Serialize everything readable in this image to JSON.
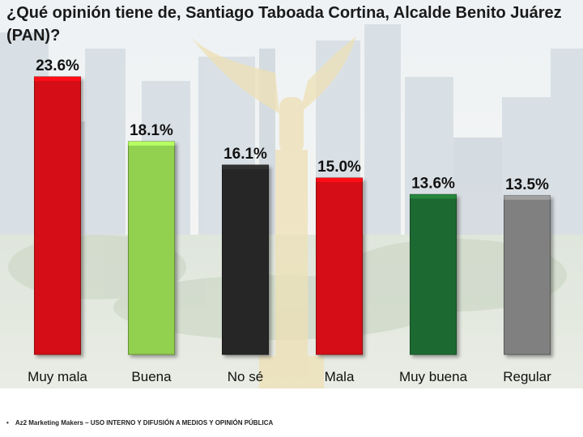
{
  "chart_data": {
    "type": "bar",
    "title": "¿Qué opinión tiene de, Santiago Taboada Cortina, Alcalde Benito Juárez (PAN)?",
    "categories": [
      "Muy mala",
      "Buena",
      "No sé",
      "Mala",
      "Muy buena",
      "Regular"
    ],
    "values": [
      23.6,
      18.1,
      16.1,
      15.0,
      13.6,
      13.5
    ],
    "data_labels": [
      "23.6%",
      "18.1%",
      "16.1%",
      "15.0%",
      "13.6%",
      "13.5%"
    ],
    "colors": [
      "#d40d12",
      "#92d050",
      "#262626",
      "#d40d12",
      "#1e6b30",
      "#808080"
    ],
    "xlabel": "",
    "ylabel": "",
    "ylim": [
      0,
      23.6
    ],
    "grid": false,
    "legend": "none"
  },
  "footer": {
    "bullet": "•",
    "text": "Az2 Marketing Makers – USO INTERNO Y DIFUSIÓN A MEDIOS Y OPINIÓN PÚBLICA"
  }
}
